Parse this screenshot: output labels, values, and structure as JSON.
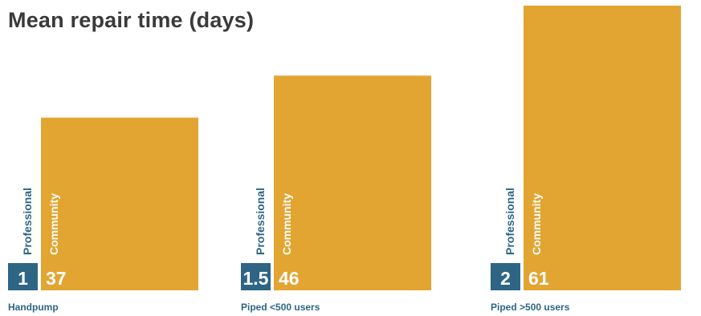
{
  "chart_data": {
    "type": "bar",
    "title": "Mean repair time (days)",
    "categories": [
      "Handpump",
      "Piped <500 users",
      "Piped >500 users"
    ],
    "series": [
      {
        "name": "Professional",
        "values": [
          1,
          1.5,
          2
        ],
        "value_labels": [
          "1",
          "1.5",
          "2"
        ]
      },
      {
        "name": "Community",
        "values": [
          37,
          46,
          61
        ],
        "value_labels": [
          "37",
          "46",
          "61"
        ]
      }
    ],
    "ylim": [
      0,
      61
    ],
    "grid": false,
    "legend": "none",
    "colors": {
      "Professional": "#2e6584",
      "Community": "#e2a532",
      "category_label": "#2e6584"
    }
  }
}
